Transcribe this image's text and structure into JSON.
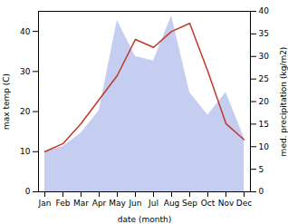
{
  "chart_data": {
    "type": "line",
    "categories": [
      "Jan",
      "Feb",
      "Mar",
      "Apr",
      "May",
      "Jun",
      "Jul",
      "Aug",
      "Sep",
      "Oct",
      "Nov",
      "Dec"
    ],
    "xlabel": "date (month)",
    "ylabel": "max temp (C)",
    "y2label": "med. precipitation (kg/m2)",
    "series": [
      {
        "type": "area",
        "axis": "y2",
        "color": "#c5cdf0",
        "values": [
          9,
          10,
          13,
          18,
          38,
          30,
          29,
          39,
          22,
          17,
          22,
          12
        ]
      },
      {
        "type": "line",
        "color": "#c0392b",
        "values": [
          10,
          12,
          17,
          23,
          29,
          38,
          36,
          40,
          42,
          30,
          17,
          13
        ]
      }
    ],
    "ylim": [
      0,
      45
    ],
    "yticks": [
      0,
      10,
      20,
      30,
      40
    ],
    "y2lim": [
      0,
      40
    ],
    "y2ticks": [
      0,
      5,
      10,
      15,
      20,
      25,
      30,
      35,
      40
    ]
  }
}
